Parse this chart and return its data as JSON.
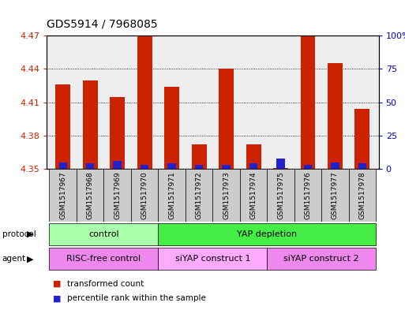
{
  "title": "GDS5914 / 7968085",
  "samples": [
    "GSM1517967",
    "GSM1517968",
    "GSM1517969",
    "GSM1517970",
    "GSM1517971",
    "GSM1517972",
    "GSM1517973",
    "GSM1517974",
    "GSM1517975",
    "GSM1517976",
    "GSM1517977",
    "GSM1517978"
  ],
  "red_values": [
    4.426,
    4.43,
    4.415,
    4.47,
    4.424,
    4.372,
    4.44,
    4.372,
    4.351,
    4.47,
    4.445,
    4.404
  ],
  "blue_percentile": [
    5,
    4,
    6,
    3,
    4,
    3,
    3,
    4,
    8,
    3,
    5,
    4
  ],
  "ymin": 4.35,
  "ymax": 4.47,
  "y_ticks_left": [
    4.35,
    4.38,
    4.41,
    4.44,
    4.47
  ],
  "y_ticks_right_labels": [
    "0",
    "25",
    "50",
    "75",
    "100%"
  ],
  "protocol_groups": [
    {
      "label": "control",
      "start": 0,
      "end": 4,
      "color": "#aaffaa"
    },
    {
      "label": "YAP depletion",
      "start": 4,
      "end": 12,
      "color": "#44ee44"
    }
  ],
  "agent_groups": [
    {
      "label": "RISC-free control",
      "start": 0,
      "end": 4,
      "color": "#ee88ee"
    },
    {
      "label": "siYAP construct 1",
      "start": 4,
      "end": 8,
      "color": "#ffaaff"
    },
    {
      "label": "siYAP construct 2",
      "start": 8,
      "end": 12,
      "color": "#ee88ee"
    }
  ],
  "bar_color_red": "#cc2200",
  "bar_color_blue": "#2222cc",
  "bar_width": 0.55,
  "blue_bar_width": 0.3,
  "background_color": "#ffffff",
  "plot_bg_color": "#eeeeee",
  "sample_box_color": "#cccccc",
  "legend_items": [
    {
      "color": "#cc2200",
      "label": "transformed count"
    },
    {
      "color": "#2222cc",
      "label": "percentile rank within the sample"
    }
  ]
}
